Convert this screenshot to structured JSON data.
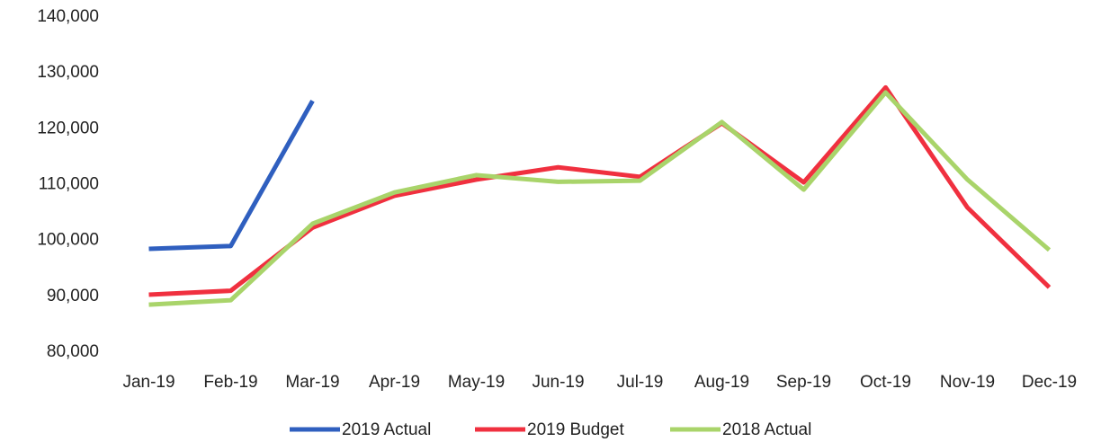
{
  "chart_data": {
    "type": "line",
    "categories": [
      "Jan-19",
      "Feb-19",
      "Mar-19",
      "Apr-19",
      "May-19",
      "Jun-19",
      "Jul-19",
      "Aug-19",
      "Sep-19",
      "Oct-19",
      "Nov-19",
      "Dec-19"
    ],
    "series": [
      {
        "name": "2019 Actual",
        "color": "#2f5fbf",
        "values": [
          98500,
          99000,
          125000,
          null,
          null,
          null,
          null,
          null,
          null,
          null,
          null,
          null
        ]
      },
      {
        "name": "2019 Budget",
        "color": "#f0303f",
        "values": [
          90300,
          91000,
          102300,
          108000,
          110900,
          113100,
          111400,
          121000,
          110400,
          127400,
          105900,
          91600
        ]
      },
      {
        "name": "2018 Actual",
        "color": "#a9d46a",
        "values": [
          88500,
          89300,
          103000,
          108600,
          111700,
          110500,
          110700,
          121200,
          109100,
          126500,
          110900,
          98300
        ]
      }
    ],
    "ylim": [
      80000,
      140000
    ],
    "yticks": [
      {
        "value": 80000,
        "label": "80,000"
      },
      {
        "value": 90000,
        "label": "90,000"
      },
      {
        "value": 100000,
        "label": "100,000"
      },
      {
        "value": 110000,
        "label": "110,000"
      },
      {
        "value": 120000,
        "label": "120,000"
      },
      {
        "value": 130000,
        "label": "130,000"
      },
      {
        "value": 140000,
        "label": "140,000"
      }
    ],
    "grid": false,
    "legend": "bottom"
  }
}
